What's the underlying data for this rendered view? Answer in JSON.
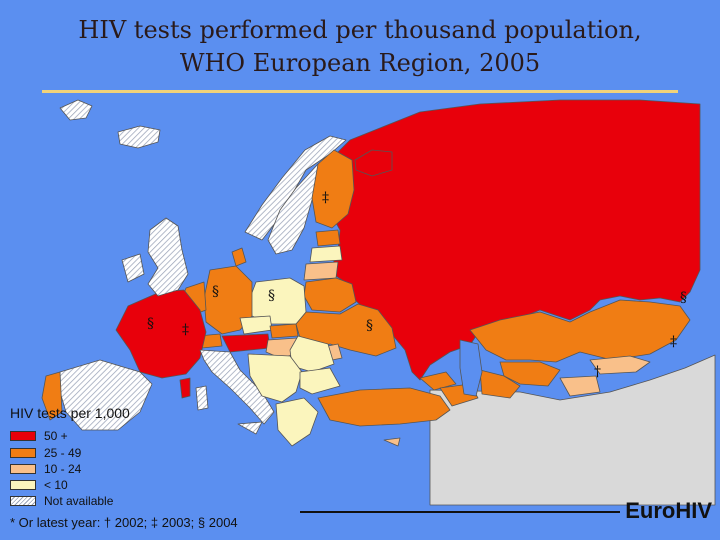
{
  "title": {
    "line1": "HIV tests performed per thousand population,",
    "line2": "WHO European Region, 2005"
  },
  "legend": {
    "title": "HIV tests per 1,000",
    "items": [
      {
        "label": "50 +",
        "color": "#e8000b"
      },
      {
        "label": "25 - 49",
        "color": "#f07d14"
      },
      {
        "label": "10 - 24",
        "color": "#f9c08a"
      },
      {
        "label": "< 10",
        "color": "#fbf5bd"
      },
      {
        "label": "Not available",
        "color": "hatched"
      }
    ]
  },
  "footnote": "* Or latest year: † 2002; ‡ 2003; § 2004",
  "brand": "EuroHIV",
  "markers": {
    "double_dagger": "‡",
    "section": "§",
    "dagger": "†"
  },
  "colors": {
    "sea": "#5b8ff0",
    "tier_50_plus": "#e8000b",
    "tier_25_49": "#f07d14",
    "tier_10_24": "#f9c08a",
    "tier_under_10": "#fbf5bd",
    "non_region": "#d9d9d9",
    "title_rule": "#f1d27a"
  }
}
